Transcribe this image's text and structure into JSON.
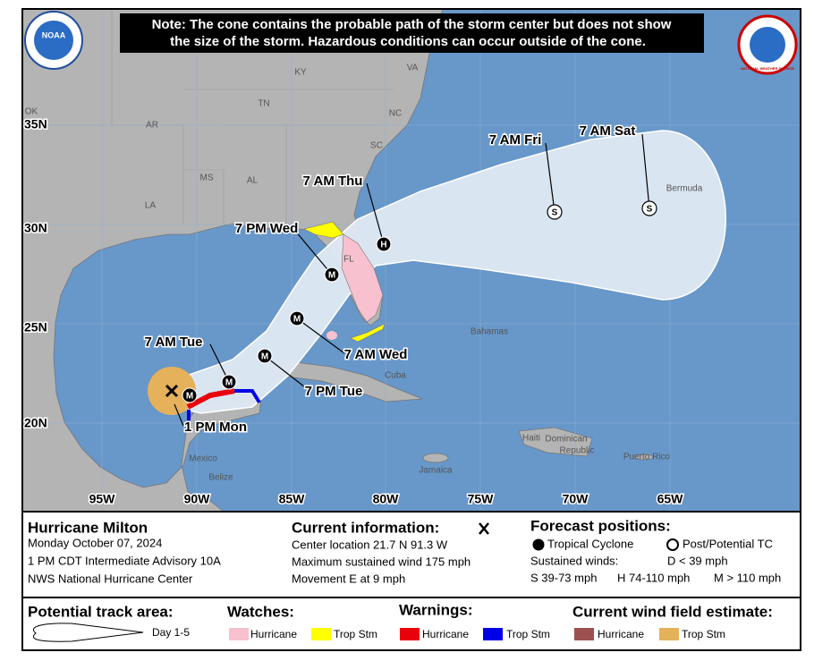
{
  "logos": {
    "noaa": "NOAA",
    "nws": "NATIONAL WEATHER SERVICE"
  },
  "note": [
    "Note: The cone contains the probable path of the storm center but does not show",
    "the size of the storm. Hazardous conditions can occur outside of the cone."
  ],
  "map": {
    "lat_labels": [
      "35N",
      "30N",
      "25N",
      "20N"
    ],
    "lon_labels": [
      "95W",
      "90W",
      "85W",
      "80W",
      "75W",
      "70W",
      "65W"
    ],
    "places": [
      "KY",
      "VA",
      "TN",
      "NC",
      "OK",
      "AR",
      "SC",
      "MS",
      "AL",
      "LA",
      "FL",
      "Bermuda",
      "Bahamas",
      "Cuba",
      "Haiti",
      "Dominican",
      "Republic",
      "Jamaica",
      "Puerto Rico",
      "Mexico",
      "Belize"
    ]
  },
  "forecast_points": [
    {
      "label": "1 PM Mon",
      "symbol": "M"
    },
    {
      "label": "7 AM Tue",
      "symbol": "M"
    },
    {
      "label": "7 PM Tue",
      "symbol": "M"
    },
    {
      "label": "7 AM Wed",
      "symbol": "M"
    },
    {
      "label": "7 PM Wed",
      "symbol": "M"
    },
    {
      "label": "7 AM Thu",
      "symbol": "H"
    },
    {
      "label": "7 AM Fri",
      "symbol": "S"
    },
    {
      "label": "7 AM Sat",
      "symbol": "S"
    }
  ],
  "info": {
    "storm": {
      "name": "Hurricane Milton",
      "date": "Monday October 07, 2024",
      "advisory": "1 PM CDT Intermediate Advisory 10A",
      "center": "NWS National Hurricane Center"
    },
    "current": {
      "title": "Current information:",
      "location": "Center location 21.7 N 91.3 W",
      "wind": "Maximum sustained wind 175 mph",
      "movement": "Movement E at 9 mph"
    },
    "forecast": {
      "title": "Forecast positions:",
      "tc": "Tropical Cyclone",
      "ptc": "Post/Potential TC",
      "winds": "Sustained winds:",
      "d": "D < 39 mph",
      "s": "S 39-73 mph",
      "h": "H 74-110 mph",
      "m": "M > 110 mph"
    }
  },
  "legend": {
    "track": "Potential track area:",
    "day": "Day 1-5",
    "watches": "Watches:",
    "watch_hurricane": "Hurricane",
    "watch_ts": "Trop Stm",
    "warnings": "Warnings:",
    "warn_hurricane": "Hurricane",
    "warn_ts": "Trop Stm",
    "wind": "Current wind field estimate:",
    "wind_hurricane": "Hurricane",
    "wind_ts": "Trop Stm"
  }
}
